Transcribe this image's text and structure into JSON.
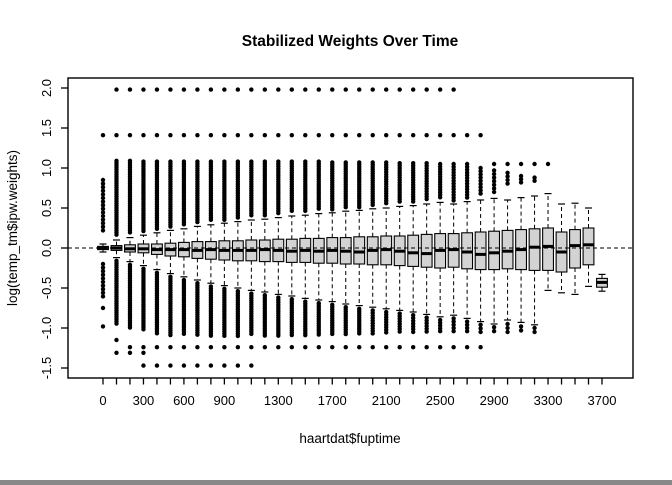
{
  "window": {
    "background": "#ffffff"
  },
  "chart_data": {
    "type": "boxplot",
    "title": "Stabilized Weights Over Time",
    "xlabel": "haartdat$fuptime",
    "ylabel": "log(temp_tm$ipw.weights)",
    "ylim": [
      -1.62,
      2.12
    ],
    "grid": false,
    "legend": "none",
    "reference_line_y": 0.0,
    "reference_line_style": "dashed",
    "box_fill": "#d3d3d3",
    "line_color": "#000000",
    "y_ticks": [
      {
        "v": 2.0,
        "label": "2.0"
      },
      {
        "v": 1.5,
        "label": "1.5"
      },
      {
        "v": 1.0,
        "label": "1.0"
      },
      {
        "v": 0.5,
        "label": "0.5"
      },
      {
        "v": 0.0,
        "label": "0.0"
      },
      {
        "v": -0.5,
        "label": "-0.5"
      },
      {
        "v": -1.0,
        "label": "-1.0"
      },
      {
        "v": -1.5,
        "label": "-1.5"
      }
    ],
    "x_tick_count": 38,
    "x_labeled_ticks": [
      {
        "pos": 1,
        "label": "0"
      },
      {
        "pos": 4,
        "label": "300"
      },
      {
        "pos": 7,
        "label": "600"
      },
      {
        "pos": 10,
        "label": "900"
      },
      {
        "pos": 14,
        "label": "1300"
      },
      {
        "pos": 18,
        "label": "1700"
      },
      {
        "pos": 22,
        "label": "2100"
      },
      {
        "pos": 26,
        "label": "2500"
      },
      {
        "pos": 30,
        "label": "2900"
      },
      {
        "pos": 34,
        "label": "3300"
      },
      {
        "pos": 38,
        "label": "3700"
      }
    ],
    "boxes": [
      {
        "t": 0,
        "lo": -0.05,
        "q1": -0.02,
        "m": 0.0,
        "q3": 0.02,
        "hi": 0.05,
        "oh": [
          [
            0.85,
            0.2,
            0.045
          ]
        ],
        "ohs": [
          1.41
        ],
        "ol": [
          [
            -0.2,
            -0.62,
            0.045
          ]
        ],
        "ols": [
          -0.75,
          -0.98
        ]
      },
      {
        "t": 100,
        "lo": -0.12,
        "q1": -0.03,
        "m": 0.0,
        "q3": 0.03,
        "hi": 0.1,
        "oh": [
          [
            1.09,
            0.14,
            0.028
          ]
        ],
        "ohs": [
          1.41,
          1.98
        ],
        "ol": [
          [
            -0.16,
            -0.97,
            0.028
          ]
        ],
        "ols": [
          -1.15,
          -1.31
        ]
      },
      {
        "t": 200,
        "lo": -0.17,
        "q1": -0.05,
        "m": -0.01,
        "q3": 0.04,
        "hi": 0.13,
        "oh": [
          [
            1.09,
            0.17,
            0.028
          ]
        ],
        "ohs": [
          1.41,
          1.98
        ],
        "ol": [
          [
            -0.21,
            -1.0,
            0.028
          ]
        ],
        "ols": [
          -1.24,
          -1.31
        ]
      },
      {
        "t": 300,
        "lo": -0.22,
        "q1": -0.06,
        "m": -0.01,
        "q3": 0.05,
        "hi": 0.16,
        "oh": [
          [
            1.08,
            0.2,
            0.028
          ]
        ],
        "ohs": [
          1.41,
          1.98
        ],
        "ol": [
          [
            -0.26,
            -1.04,
            0.028
          ]
        ],
        "ols": [
          -1.24,
          -1.31,
          -1.47
        ]
      },
      {
        "t": 400,
        "lo": -0.27,
        "q1": -0.08,
        "m": -0.02,
        "q3": 0.05,
        "hi": 0.19,
        "oh": [
          [
            1.08,
            0.23,
            0.028
          ]
        ],
        "ohs": [
          1.41,
          1.98
        ],
        "ol": [
          [
            -0.31,
            -1.09,
            0.028
          ]
        ],
        "ols": [
          -1.24,
          -1.47
        ]
      },
      {
        "t": 500,
        "lo": -0.32,
        "q1": -0.1,
        "m": -0.02,
        "q3": 0.06,
        "hi": 0.22,
        "oh": [
          [
            1.08,
            0.26,
            0.028
          ]
        ],
        "ohs": [
          1.41,
          1.98
        ],
        "ol": [
          [
            -0.36,
            -1.09,
            0.028
          ]
        ],
        "ols": [
          -1.24,
          -1.47
        ]
      },
      {
        "t": 600,
        "lo": -0.36,
        "q1": -0.11,
        "m": -0.02,
        "q3": 0.07,
        "hi": 0.24,
        "oh": [
          [
            1.08,
            0.28,
            0.028
          ]
        ],
        "ohs": [
          1.41,
          1.98
        ],
        "ol": [
          [
            -0.4,
            -1.09,
            0.028
          ]
        ],
        "ols": [
          -1.24,
          -1.47
        ]
      },
      {
        "t": 700,
        "lo": -0.4,
        "q1": -0.13,
        "m": -0.03,
        "q3": 0.08,
        "hi": 0.27,
        "oh": [
          [
            1.08,
            0.31,
            0.028
          ]
        ],
        "ohs": [
          1.41,
          1.98
        ],
        "ol": [
          [
            -0.44,
            -1.09,
            0.028
          ]
        ],
        "ols": [
          -1.24,
          -1.47
        ]
      },
      {
        "t": 800,
        "lo": -0.44,
        "q1": -0.14,
        "m": -0.02,
        "q3": 0.08,
        "hi": 0.29,
        "oh": [
          [
            1.08,
            0.33,
            0.028
          ]
        ],
        "ohs": [
          1.41,
          1.98
        ],
        "ol": [
          [
            -0.48,
            -1.1,
            0.028
          ]
        ],
        "ols": [
          -1.24,
          -1.47
        ]
      },
      {
        "t": 900,
        "lo": -0.47,
        "q1": -0.15,
        "m": -0.03,
        "q3": 0.09,
        "hi": 0.31,
        "oh": [
          [
            1.08,
            0.35,
            0.028
          ]
        ],
        "ohs": [
          1.41,
          1.98
        ],
        "ol": [
          [
            -0.51,
            -1.1,
            0.028
          ]
        ],
        "ols": [
          -1.24,
          -1.47
        ]
      },
      {
        "t": 1000,
        "lo": -0.5,
        "q1": -0.16,
        "m": -0.03,
        "q3": 0.09,
        "hi": 0.33,
        "oh": [
          [
            1.08,
            0.37,
            0.028
          ]
        ],
        "ohs": [
          1.41,
          1.98
        ],
        "ol": [
          [
            -0.54,
            -1.1,
            0.028
          ]
        ],
        "ols": [
          -1.24,
          -1.47
        ]
      },
      {
        "t": 1100,
        "lo": -0.53,
        "q1": -0.16,
        "m": -0.03,
        "q3": 0.1,
        "hi": 0.35,
        "oh": [
          [
            1.08,
            0.39,
            0.028
          ]
        ],
        "ohs": [
          1.41,
          1.98
        ],
        "ol": [
          [
            -0.57,
            -1.1,
            0.028
          ]
        ],
        "ols": [
          -1.24,
          -1.47
        ]
      },
      {
        "t": 1200,
        "lo": -0.55,
        "q1": -0.17,
        "m": -0.02,
        "q3": 0.1,
        "hi": 0.36,
        "oh": [
          [
            1.08,
            0.4,
            0.028
          ]
        ],
        "ohs": [
          1.41,
          1.98
        ],
        "ol": [
          [
            -0.59,
            -1.1,
            0.028
          ]
        ],
        "ols": [
          -1.24
        ]
      },
      {
        "t": 1300,
        "lo": -0.58,
        "q1": -0.17,
        "m": -0.03,
        "q3": 0.11,
        "hi": 0.38,
        "oh": [
          [
            1.08,
            0.42,
            0.028
          ]
        ],
        "ohs": [
          1.41,
          1.98
        ],
        "ol": [
          [
            -0.62,
            -1.1,
            0.028
          ]
        ],
        "ols": [
          -1.24
        ]
      },
      {
        "t": 1400,
        "lo": -0.6,
        "q1": -0.18,
        "m": -0.04,
        "q3": 0.11,
        "hi": 0.4,
        "oh": [
          [
            1.08,
            0.44,
            0.028
          ]
        ],
        "ohs": [
          1.41,
          1.98
        ],
        "ol": [
          [
            -0.64,
            -1.1,
            0.028
          ]
        ],
        "ols": [
          -1.24
        ]
      },
      {
        "t": 1500,
        "lo": -0.63,
        "q1": -0.18,
        "m": -0.03,
        "q3": 0.12,
        "hi": 0.41,
        "oh": [
          [
            1.08,
            0.45,
            0.028
          ]
        ],
        "ohs": [
          1.41,
          1.98
        ],
        "ol": [
          [
            -0.67,
            -1.1,
            0.028
          ]
        ],
        "ols": [
          -1.24
        ]
      },
      {
        "t": 1600,
        "lo": -0.65,
        "q1": -0.19,
        "m": -0.04,
        "q3": 0.12,
        "hi": 0.43,
        "oh": [
          [
            1.08,
            0.47,
            0.028
          ]
        ],
        "ohs": [
          1.41,
          1.98
        ],
        "ol": [
          [
            -0.69,
            -1.1,
            0.028
          ]
        ],
        "ols": [
          -1.24
        ]
      },
      {
        "t": 1700,
        "lo": -0.67,
        "q1": -0.19,
        "m": -0.03,
        "q3": 0.13,
        "hi": 0.44,
        "oh": [
          [
            1.07,
            0.48,
            0.028
          ]
        ],
        "ohs": [
          1.41,
          1.98
        ],
        "ol": [
          [
            -0.71,
            -1.09,
            0.028
          ]
        ],
        "ols": [
          -1.24
        ]
      },
      {
        "t": 1800,
        "lo": -0.7,
        "q1": -0.2,
        "m": -0.04,
        "q3": 0.13,
        "hi": 0.46,
        "oh": [
          [
            1.07,
            0.5,
            0.028
          ]
        ],
        "ohs": [
          1.41,
          1.98
        ],
        "ol": [
          [
            -0.74,
            -1.09,
            0.028
          ]
        ],
        "ols": [
          -1.24
        ]
      },
      {
        "t": 1900,
        "lo": -0.72,
        "q1": -0.2,
        "m": -0.05,
        "q3": 0.14,
        "hi": 0.47,
        "oh": [
          [
            1.07,
            0.51,
            0.028
          ]
        ],
        "ohs": [
          1.41,
          1.98
        ],
        "ol": [
          [
            -0.76,
            -1.08,
            0.028
          ]
        ],
        "ols": [
          -1.24
        ]
      },
      {
        "t": 2000,
        "lo": -0.74,
        "q1": -0.21,
        "m": -0.03,
        "q3": 0.14,
        "hi": 0.49,
        "oh": [
          [
            1.07,
            0.53,
            0.028
          ]
        ],
        "ohs": [
          1.41,
          1.98
        ],
        "ol": [
          [
            -0.78,
            -1.08,
            0.032
          ]
        ],
        "ols": [
          -1.24
        ]
      },
      {
        "t": 2100,
        "lo": -0.76,
        "q1": -0.21,
        "m": -0.02,
        "q3": 0.15,
        "hi": 0.5,
        "oh": [
          [
            1.07,
            0.54,
            0.03
          ]
        ],
        "ohs": [
          1.41,
          1.98
        ],
        "ol": [
          [
            -0.8,
            -1.07,
            0.032
          ]
        ],
        "ols": [
          -1.24
        ]
      },
      {
        "t": 2200,
        "lo": -0.78,
        "q1": -0.22,
        "m": -0.04,
        "q3": 0.15,
        "hi": 0.52,
        "oh": [
          [
            1.06,
            0.56,
            0.03
          ]
        ],
        "ohs": [
          1.41,
          1.98
        ],
        "ol": [
          [
            -0.82,
            -1.07,
            0.032
          ]
        ],
        "ols": [
          -1.24
        ]
      },
      {
        "t": 2300,
        "lo": -0.8,
        "q1": -0.23,
        "m": -0.06,
        "q3": 0.16,
        "hi": 0.53,
        "oh": [
          [
            1.06,
            0.57,
            0.03
          ]
        ],
        "ohs": [
          1.41,
          1.98
        ],
        "ol": [
          [
            -0.84,
            -1.06,
            0.035
          ]
        ],
        "ols": [
          -1.24
        ]
      },
      {
        "t": 2400,
        "lo": -0.83,
        "q1": -0.24,
        "m": -0.07,
        "q3": 0.17,
        "hi": 0.55,
        "oh": [
          [
            1.06,
            0.59,
            0.032
          ]
        ],
        "ohs": [
          1.41,
          1.98
        ],
        "ol": [
          [
            -0.87,
            -1.06,
            0.035
          ]
        ],
        "ols": [
          -1.24
        ]
      },
      {
        "t": 2500,
        "lo": -0.86,
        "q1": -0.25,
        "m": -0.03,
        "q3": 0.18,
        "hi": 0.57,
        "oh": [
          [
            1.05,
            0.61,
            0.032
          ]
        ],
        "ohs": [
          1.41,
          1.98
        ],
        "ol": [
          [
            -0.9,
            -1.05,
            0.035
          ]
        ],
        "ols": [
          -1.24
        ]
      },
      {
        "t": 2600,
        "lo": -0.84,
        "q1": -0.24,
        "m": -0.02,
        "q3": 0.18,
        "hi": 0.55,
        "oh": [
          [
            1.05,
            0.59,
            0.035
          ]
        ],
        "ohs": [
          1.41,
          1.98
        ],
        "ol": [
          [
            -0.88,
            -1.05,
            0.04
          ]
        ],
        "ols": [
          -1.24
        ]
      },
      {
        "t": 2700,
        "lo": -0.88,
        "q1": -0.26,
        "m": -0.05,
        "q3": 0.19,
        "hi": 0.58,
        "oh": [
          [
            1.05,
            0.62,
            0.035
          ]
        ],
        "ohs": [
          1.41
        ],
        "ol": [
          [
            -0.92,
            -1.05,
            0.04
          ]
        ],
        "ols": [
          -1.24
        ]
      },
      {
        "t": 2800,
        "lo": -0.92,
        "q1": -0.27,
        "m": -0.08,
        "q3": 0.2,
        "hi": 0.6,
        "oh": [
          [
            1.0,
            0.68,
            0.04
          ]
        ],
        "ohs": [
          1.41
        ],
        "ol": [
          [
            -0.96,
            -1.06,
            0.045
          ]
        ],
        "ols": [
          -1.24
        ]
      },
      {
        "t": 2900,
        "lo": -0.95,
        "q1": -0.27,
        "m": -0.06,
        "q3": 0.21,
        "hi": 0.62,
        "oh": [
          [
            0.97,
            0.7,
            0.045
          ]
        ],
        "ohs": [
          1.05
        ],
        "ol": [
          [
            -0.99,
            -1.07,
            0.05
          ]
        ],
        "ols": []
      },
      {
        "t": 3000,
        "lo": -0.9,
        "q1": -0.26,
        "m": -0.04,
        "q3": 0.22,
        "hi": 0.6,
        "oh": [
          [
            0.94,
            0.8,
            0.045
          ]
        ],
        "ohs": [
          1.05
        ],
        "ol": [
          [
            -0.95,
            -1.08,
            0.05
          ]
        ],
        "ols": []
      },
      {
        "t": 3100,
        "lo": -0.93,
        "q1": -0.27,
        "m": -0.02,
        "q3": 0.23,
        "hi": 0.63,
        "oh": [
          [
            0.9,
            0.82,
            0.04
          ]
        ],
        "ohs": [
          1.05
        ],
        "ol": [
          [
            -0.98,
            -1.06,
            0.05
          ]
        ],
        "ols": []
      },
      {
        "t": 3200,
        "lo": -0.96,
        "q1": -0.28,
        "m": 0.01,
        "q3": 0.24,
        "hi": 0.65,
        "oh": [],
        "ohs": [
          1.05,
          0.88,
          0.84
        ],
        "ol": [],
        "ols": [
          -1.0,
          -1.05
        ]
      },
      {
        "t": 3300,
        "lo": -0.53,
        "q1": -0.28,
        "m": 0.02,
        "q3": 0.25,
        "hi": 0.68,
        "oh": [],
        "ohs": [
          1.05
        ],
        "ol": [],
        "ols": []
      },
      {
        "t": 3400,
        "lo": -0.56,
        "q1": -0.3,
        "m": -0.05,
        "q3": 0.2,
        "hi": 0.55,
        "oh": [],
        "ohs": [],
        "ol": [],
        "ols": []
      },
      {
        "t": 3500,
        "lo": -0.58,
        "q1": -0.25,
        "m": 0.03,
        "q3": 0.23,
        "hi": 0.56,
        "oh": [],
        "ohs": [],
        "ol": [],
        "ols": []
      },
      {
        "t": 3600,
        "lo": -0.48,
        "q1": -0.21,
        "m": 0.04,
        "q3": 0.25,
        "hi": 0.5,
        "oh": [],
        "ohs": [],
        "ol": [],
        "ols": []
      },
      {
        "t": 3700,
        "lo": -0.54,
        "q1": -0.49,
        "m": -0.43,
        "q3": -0.38,
        "hi": -0.33,
        "oh": [],
        "ohs": [],
        "ol": [],
        "ols": []
      }
    ]
  }
}
